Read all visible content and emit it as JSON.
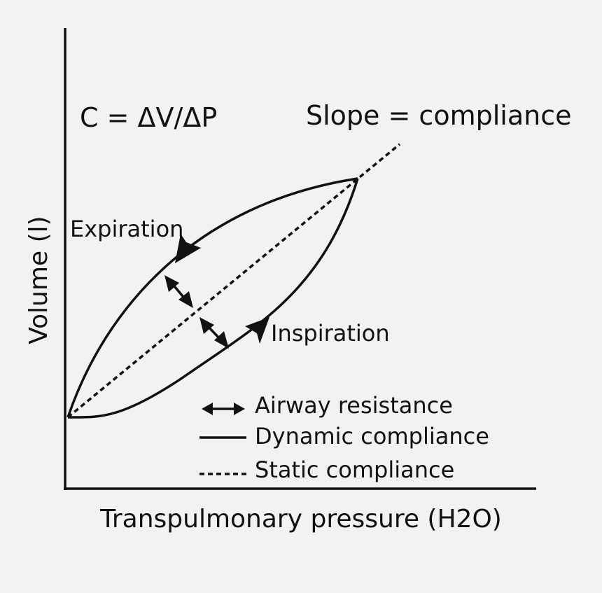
{
  "diagram": {
    "axes": {
      "x_label": "Transpulmonary pressure (H2O)",
      "y_label": "Volume (l)"
    },
    "equation": "C = ΔV/ΔP",
    "slope_note": "Slope = compliance",
    "curves": {
      "expiration_label": "Expiration",
      "inspiration_label": "Inspiration"
    },
    "legend": {
      "items": [
        {
          "key": "airway_resistance",
          "label": "Airway resistance",
          "symbol": "double-arrow"
        },
        {
          "key": "dynamic_compliance",
          "label": "Dynamic compliance",
          "symbol": "solid-line"
        },
        {
          "key": "static_compliance",
          "label": "Static compliance",
          "symbol": "dotted-line"
        }
      ]
    },
    "colors": {
      "background": "#f2f2f2",
      "ink": "#111111"
    }
  }
}
